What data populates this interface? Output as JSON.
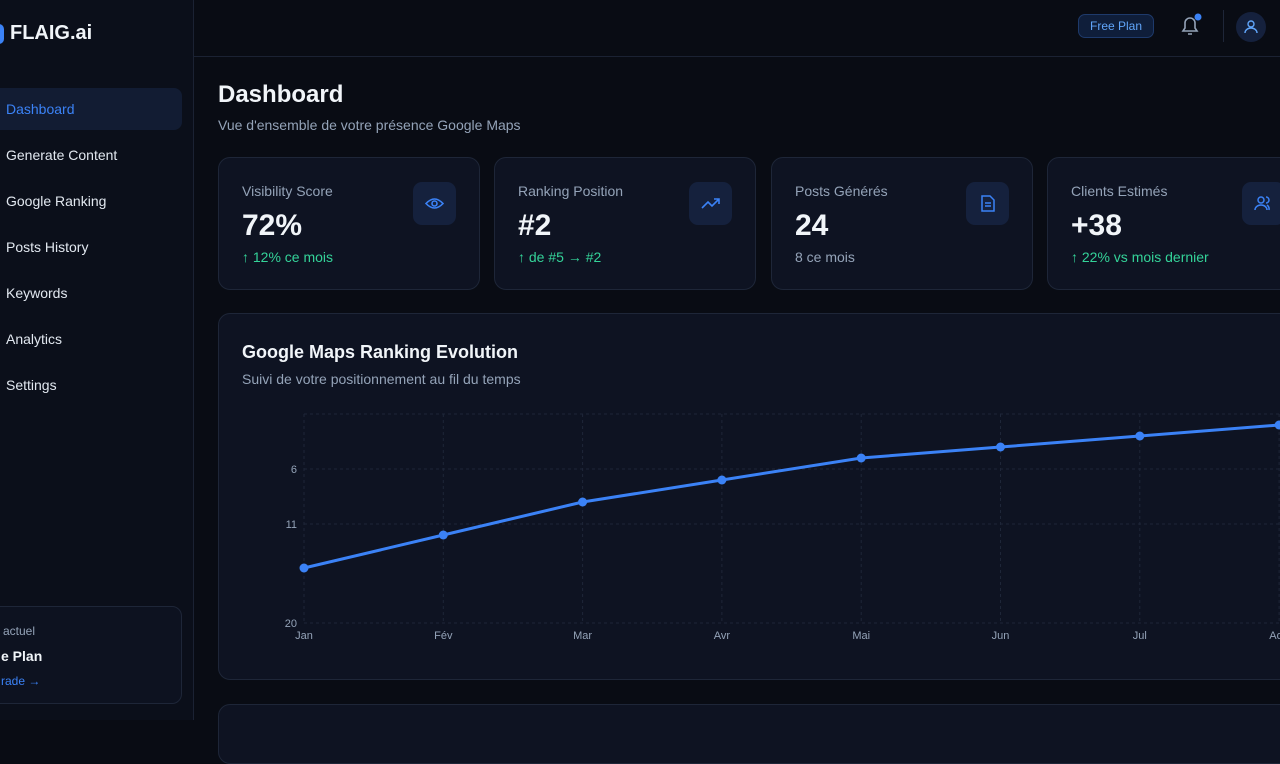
{
  "sidebar": {
    "logo": "FLAIG.ai",
    "nav": [
      "Dashboard",
      "Generate Content",
      "Google Ranking",
      "Posts History",
      "Keywords",
      "Analytics",
      "Settings"
    ],
    "plan": {
      "label": "actuel",
      "name": "e Plan",
      "link": "rade →"
    }
  },
  "topbar": {
    "badge": "Free Plan"
  },
  "header": {
    "title": "Dashboard",
    "subtitle": "Vue d'ensemble de votre présence Google Maps"
  },
  "stats": [
    {
      "label": "Visibility Score",
      "value": "72%",
      "note": "↑ 12% ce mois"
    },
    {
      "label": "Ranking Position",
      "value": "#2",
      "note": "↑ de #5 → #2"
    },
    {
      "label": "Posts Générés",
      "value": "24",
      "note": "8 ce mois"
    },
    {
      "label": "Clients Estimés",
      "value": "+38",
      "note": "↑ 22% vs mois dernier"
    }
  ],
  "chart_data": {
    "type": "line",
    "title": "Google Maps Ranking Evolution",
    "subtitle": "Suivi de votre positionnement au fil du temps",
    "categories": [
      "Jan",
      "Fév",
      "Mar",
      "Avr",
      "Mai",
      "Jun",
      "Jul",
      "Aoû"
    ],
    "values": [
      15,
      12,
      9,
      7,
      5,
      4,
      3,
      2
    ],
    "color": "#3b82f6",
    "ylim": [
      20,
      1
    ],
    "yticks": [
      6,
      11,
      20
    ],
    "grid": true
  }
}
